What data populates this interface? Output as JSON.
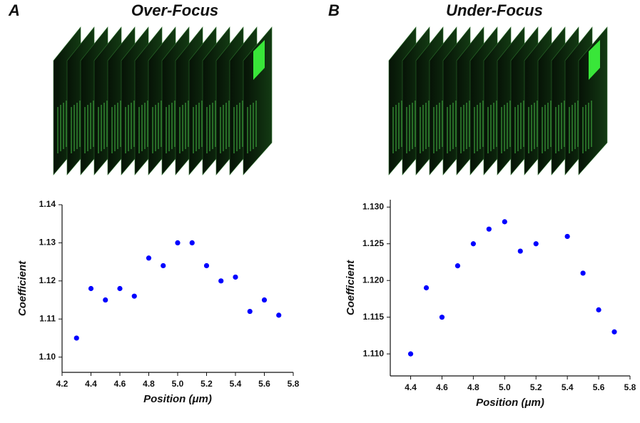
{
  "chart_data": [
    {
      "type": "scatter",
      "panel": "A",
      "title": "Over-Focus",
      "xlabel": "Position (μm)",
      "ylabel": "Coefficient",
      "color": "#0000ff",
      "x": [
        4.3,
        4.4,
        4.5,
        4.6,
        4.7,
        4.8,
        4.9,
        5.0,
        5.1,
        5.2,
        5.3,
        5.4,
        5.5,
        5.6,
        5.7
      ],
      "values": [
        1.105,
        1.118,
        1.115,
        1.118,
        1.116,
        1.126,
        1.124,
        1.13,
        1.13,
        1.124,
        1.12,
        1.121,
        1.112,
        1.115,
        1.111
      ],
      "xlim": [
        4.2,
        5.8
      ],
      "xticks": [
        4.2,
        4.4,
        4.6,
        4.8,
        {
          "value": 5,
          "label": "5.0"
        },
        5.2,
        5.4,
        5.6,
        5.8
      ],
      "ylim": [
        1.096,
        1.14
      ],
      "yticks": [
        {
          "value": 1.1,
          "label": "1.10"
        },
        1.11,
        1.12,
        1.13,
        1.14
      ]
    },
    {
      "type": "scatter",
      "panel": "B",
      "title": "Under-Focus",
      "xlabel": "Position (μm)",
      "ylabel": "Coefficient",
      "color": "#0000ff",
      "x": [
        4.4,
        4.5,
        4.6,
        4.7,
        4.8,
        4.9,
        5.0,
        5.1,
        5.2,
        5.4,
        5.5,
        5.6,
        5.7
      ],
      "values": [
        1.11,
        1.119,
        1.115,
        1.122,
        1.125,
        1.127,
        1.128,
        1.124,
        1.125,
        1.126,
        1.121,
        1.116,
        1.113
      ],
      "xlim": [
        4.27,
        5.8
      ],
      "xticks": [
        4.4,
        4.6,
        4.8,
        {
          "value": 5,
          "label": "5.0"
        },
        5.2,
        5.4,
        5.6,
        5.8
      ],
      "ylim": [
        1.107,
        1.131
      ],
      "yticks": [
        {
          "value": 1.11,
          "label": "1.110"
        },
        {
          "value": 1.115,
          "label": "1.115"
        },
        {
          "value": 1.12,
          "label": "1.120"
        },
        {
          "value": 1.125,
          "label": "1.125"
        },
        {
          "value": 1.13,
          "label": "1.130"
        }
      ]
    }
  ]
}
